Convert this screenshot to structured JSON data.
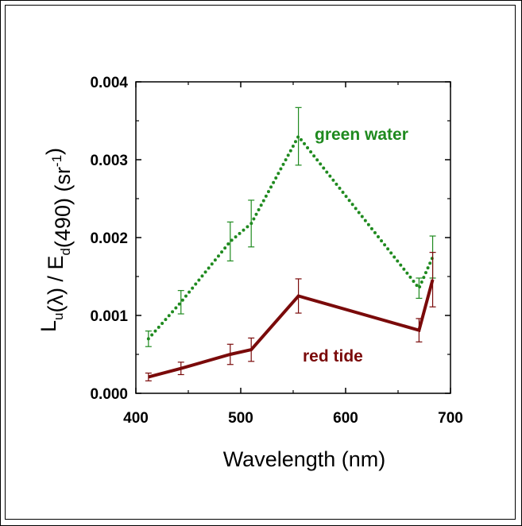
{
  "chart_data": {
    "type": "line",
    "xlabel": "Wavelength (nm)",
    "ylabel": {
      "parts": [
        {
          "text": "L",
          "style": "normal"
        },
        {
          "text": "u",
          "style": "sub"
        },
        {
          "text": "(λ) / E",
          "style": "normal"
        },
        {
          "text": "d",
          "style": "sub"
        },
        {
          "text": "(490)  (sr",
          "style": "normal"
        },
        {
          "text": "-1",
          "style": "sup"
        },
        {
          "text": ")",
          "style": "normal"
        }
      ]
    },
    "xlim": [
      400,
      700
    ],
    "ylim": [
      0.0,
      0.004
    ],
    "xticks": [
      400,
      500,
      600,
      700
    ],
    "xtick_labels": [
      "400",
      "500",
      "600",
      "700"
    ],
    "yticks": [
      0.0,
      0.001,
      0.002,
      0.003,
      0.004
    ],
    "ytick_labels": [
      "0.000",
      "0.001",
      "0.002",
      "0.003",
      "0.004"
    ],
    "grid": false,
    "series": [
      {
        "label": "green water",
        "color": "#1f8a1f",
        "line_style": "dotted",
        "x": [
          412,
          443,
          490,
          510,
          555,
          670,
          683
        ],
        "y": [
          0.0007,
          0.00117,
          0.00195,
          0.00218,
          0.0033,
          0.00135,
          0.00175
        ],
        "err": [
          0.0001,
          0.00015,
          0.00025,
          0.0003,
          0.00037,
          0.00013,
          0.00027
        ]
      },
      {
        "label": "red tide",
        "color": "#7a0a0a",
        "line_style": "solid",
        "x": [
          412,
          443,
          490,
          510,
          555,
          670,
          683
        ],
        "y": [
          0.00021,
          0.00032,
          0.0005,
          0.00056,
          0.00125,
          0.00081,
          0.00146
        ],
        "err": [
          5e-05,
          8e-05,
          0.00013,
          0.00015,
          0.00022,
          0.00015,
          0.00035
        ]
      }
    ]
  }
}
